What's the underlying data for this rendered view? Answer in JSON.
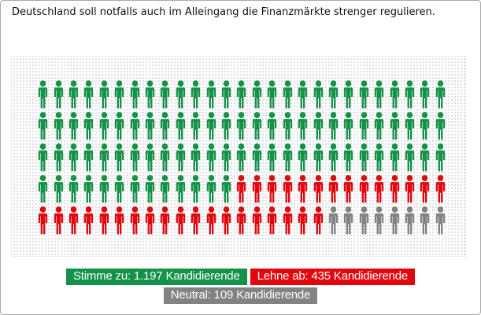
{
  "title": "Deutschland soll notfalls auch im Alleingang die Finanzmärkte strenger regulieren.",
  "legend": {
    "items": [
      {
        "id": "agree",
        "label": "Stimme zu: 1.197 Kandidierende",
        "color": "#14924a"
      },
      {
        "id": "reject",
        "label": "Lehne ab: 435 Kandidierende",
        "color": "#e2070e"
      },
      {
        "id": "neutral",
        "label": "Neutral: 109 Kandidierende",
        "color": "#828282"
      }
    ]
  },
  "chart_data": {
    "type": "pictogram",
    "title": "Deutschland soll notfalls auch im Alleingang die Finanzmärkte strenger regulieren.",
    "unit": "Kandidierende",
    "icon_glyph": "person",
    "icons_per_row": 27,
    "row_count": 5,
    "total_icons": 135,
    "series": [
      {
        "name": "Stimme zu",
        "value": 1197,
        "icon_count": 94,
        "color": "#14924a"
      },
      {
        "name": "Lehne ab",
        "value": 435,
        "icon_count": 33,
        "color": "#e2070e"
      },
      {
        "name": "Neutral",
        "value": 109,
        "icon_count": 8,
        "color": "#828282"
      }
    ]
  }
}
